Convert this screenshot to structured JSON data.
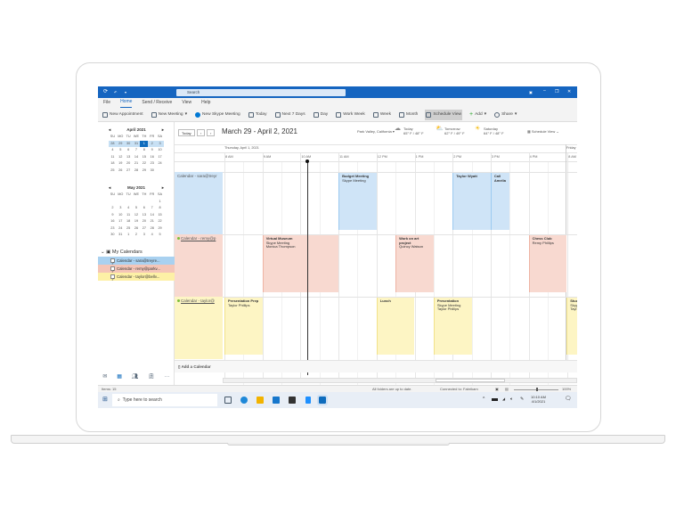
{
  "titlebar": {
    "search_placeholder": "Search"
  },
  "menu": [
    "File",
    "Home",
    "Send / Receive",
    "View",
    "Help"
  ],
  "ribbon": {
    "new_appointment": "New Appointment",
    "new_meeting": "New Meeting",
    "new_skype": "New Skype Meeting",
    "today": "Today",
    "next7": "Next 7 Days",
    "day": "Day",
    "work_week": "Work Week",
    "week": "Week",
    "month": "Month",
    "schedule_view": "Schedule View",
    "add": "Add",
    "share": "Share"
  },
  "minical": [
    {
      "title": "April 2021",
      "days": [
        "SU",
        "MO",
        "TU",
        "WE",
        "TH",
        "FR",
        "SA"
      ],
      "cells": [
        "28",
        "29",
        "30",
        "31",
        "1",
        "2",
        "3",
        "4",
        "5",
        "6",
        "7",
        "8",
        "9",
        "10",
        "11",
        "12",
        "13",
        "14",
        "15",
        "16",
        "17",
        "18",
        "19",
        "20",
        "21",
        "22",
        "23",
        "24",
        "25",
        "26",
        "27",
        "28",
        "29",
        "30",
        ""
      ],
      "selected_week": 0,
      "today": "1"
    },
    {
      "title": "May 2021",
      "days": [
        "SU",
        "MO",
        "TU",
        "WE",
        "TH",
        "FR",
        "SA"
      ],
      "cells": [
        "",
        "",
        "",
        "",
        "",
        "",
        "1",
        "2",
        "3",
        "4",
        "5",
        "6",
        "7",
        "8",
        "9",
        "10",
        "11",
        "12",
        "13",
        "14",
        "15",
        "16",
        "17",
        "18",
        "19",
        "20",
        "21",
        "22",
        "23",
        "24",
        "25",
        "26",
        "27",
        "28",
        "29",
        "30",
        "31",
        "1",
        "2",
        "3",
        "4",
        "5"
      ]
    }
  ],
  "my_calendars": {
    "title": "My Calendars",
    "items": [
      {
        "label": "Calendar - sara@treyre...",
        "color": "#a9d1f0"
      },
      {
        "label": "Calendar - remy@parkv...",
        "color": "#f4c5b7"
      },
      {
        "label": "Calendar - taylor@bellv...",
        "color": "#fdf0a6"
      }
    ]
  },
  "header": {
    "today_button": "Today",
    "date_range": "March 29 - April 2, 2021",
    "location": "Park Valley, California",
    "weather": [
      {
        "day": "Today",
        "temp": "65° F / 48° F",
        "icon": "cloud-icon"
      },
      {
        "day": "Tomorrow",
        "temp": "62° F / 49° F",
        "icon": "partly-sunny-icon"
      },
      {
        "day": "Saturday",
        "temp": "64° F / 48° F",
        "icon": "sun-icon"
      }
    ],
    "view_select": "Schedule View"
  },
  "schedule": {
    "day_label": "Thursday, April 1, 2021",
    "next_day_label": "Friday",
    "hours": [
      "8 AM",
      "9 AM",
      "10 AM",
      "11 AM",
      "12 PM",
      "1 PM",
      "2 PM",
      "3 PM",
      "4 PM",
      "8 AM"
    ],
    "current_time": "10:10 AM",
    "lanes": [
      {
        "label": "Calendar - sara@treyr",
        "bg": "#cfe4f7",
        "border": "#9ccaf0",
        "events": [
          {
            "title": "Budget Meeting",
            "lines": [
              "Skype Meeting"
            ],
            "start": 11,
            "end": 12
          },
          {
            "title": "Taylor Wyatt",
            "lines": [],
            "start": 14,
            "end": 15
          },
          {
            "title": "Call Amelia",
            "lines": [],
            "start": 15,
            "end": 15.5
          }
        ]
      },
      {
        "label": "Calendar - remy@p",
        "bg": "#f8d9d0",
        "border": "#eeb3a3",
        "events": [
          {
            "title": "Virtual Museum",
            "lines": [
              "Skype Meeting",
              "Monica Thompson"
            ],
            "start": 9,
            "end": 11
          },
          {
            "title": "Work on art project",
            "lines": [
              "Quincy Watson"
            ],
            "start": 12.5,
            "end": 13.5
          },
          {
            "title": "Chess Club",
            "lines": [
              "Remy Phillips"
            ],
            "start": 16,
            "end": 17
          }
        ]
      },
      {
        "label": "Calendar - taylor@",
        "bg": "#fdf5c4",
        "border": "#f1e28a",
        "events": [
          {
            "title": "Presentation Prep",
            "lines": [
              "Taylor Phillips"
            ],
            "start": 8,
            "end": 9
          },
          {
            "title": "Lunch",
            "lines": [],
            "start": 12,
            "end": 13
          },
          {
            "title": "Presentation",
            "lines": [
              "Skype Meeting",
              "Taylor Phillips"
            ],
            "start": 13.5,
            "end": 14.5
          },
          {
            "title": "Stud",
            "lines": [
              "Skyp",
              "Tayl"
            ],
            "start": 17,
            "end": 17.5
          }
        ]
      }
    ],
    "add_calendar": "Add a Calendar"
  },
  "status": {
    "items": "Items: 15",
    "sync": "All folders are up to date.",
    "connected": "Connected to: Fabrikam",
    "zoom": "100%",
    "zoom_fraction": 0.5
  },
  "taskbar": {
    "search_placeholder": "Type here to search",
    "time": "10:10 AM",
    "date": "4/1/2021"
  }
}
